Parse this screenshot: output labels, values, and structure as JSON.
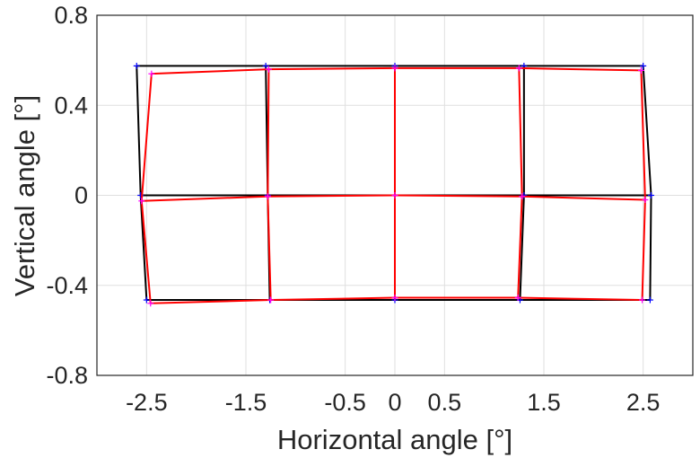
{
  "chart_data": {
    "type": "line",
    "xlabel": "Horizontal angle [°]",
    "ylabel": "Vertical angle [°]",
    "xlim": [
      -3,
      3
    ],
    "ylim": [
      -0.8,
      0.8
    ],
    "xticks": [
      -2.5,
      -1.5,
      -0.5,
      0,
      0.5,
      1.5,
      2.5
    ],
    "xtick_labels": [
      "-2.5",
      "-1.5",
      "-0.5",
      "0",
      "0.5",
      "1.5",
      "2.5"
    ],
    "yticks": [
      0.8,
      0.4,
      0,
      -0.4,
      -0.8
    ],
    "ytick_labels": [
      "0.8",
      "0.4",
      "0",
      "-0.4",
      "-0.8"
    ],
    "xgrid": [
      -2.5,
      -1.5,
      -0.5,
      0,
      0.5,
      1.5,
      2.5
    ],
    "ygrid": [
      -0.8,
      -0.4,
      0,
      0.4,
      0.8
    ],
    "grid": true,
    "series": [
      {
        "color": "#000000",
        "marker_color": "#0000ff",
        "rows": [
          [
            [
              -2.6,
              0.575
            ],
            [
              -1.3,
              0.575
            ],
            [
              0,
              0.575
            ],
            [
              1.3,
              0.575
            ],
            [
              2.5,
              0.575
            ]
          ],
          [
            [
              -2.56,
              0
            ],
            [
              -1.28,
              0
            ],
            [
              0,
              0
            ],
            [
              1.3,
              0
            ],
            [
              2.58,
              0
            ]
          ],
          [
            [
              -2.5,
              -0.465
            ],
            [
              -1.26,
              -0.465
            ],
            [
              0,
              -0.465
            ],
            [
              1.26,
              -0.465
            ],
            [
              2.57,
              -0.465
            ]
          ]
        ]
      },
      {
        "color": "#ff0000",
        "marker_color": "#ff00ff",
        "rows": [
          [
            [
              -2.45,
              0.54
            ],
            [
              -1.27,
              0.56
            ],
            [
              0,
              0.565
            ],
            [
              1.25,
              0.565
            ],
            [
              2.48,
              0.555
            ]
          ],
          [
            [
              -2.55,
              -0.025
            ],
            [
              -1.28,
              -0.005
            ],
            [
              0,
              0
            ],
            [
              1.28,
              -0.005
            ],
            [
              2.52,
              -0.02
            ]
          ],
          [
            [
              -2.46,
              -0.48
            ],
            [
              -1.25,
              -0.465
            ],
            [
              0,
              -0.455
            ],
            [
              1.24,
              -0.455
            ],
            [
              2.49,
              -0.465
            ]
          ]
        ]
      }
    ]
  }
}
